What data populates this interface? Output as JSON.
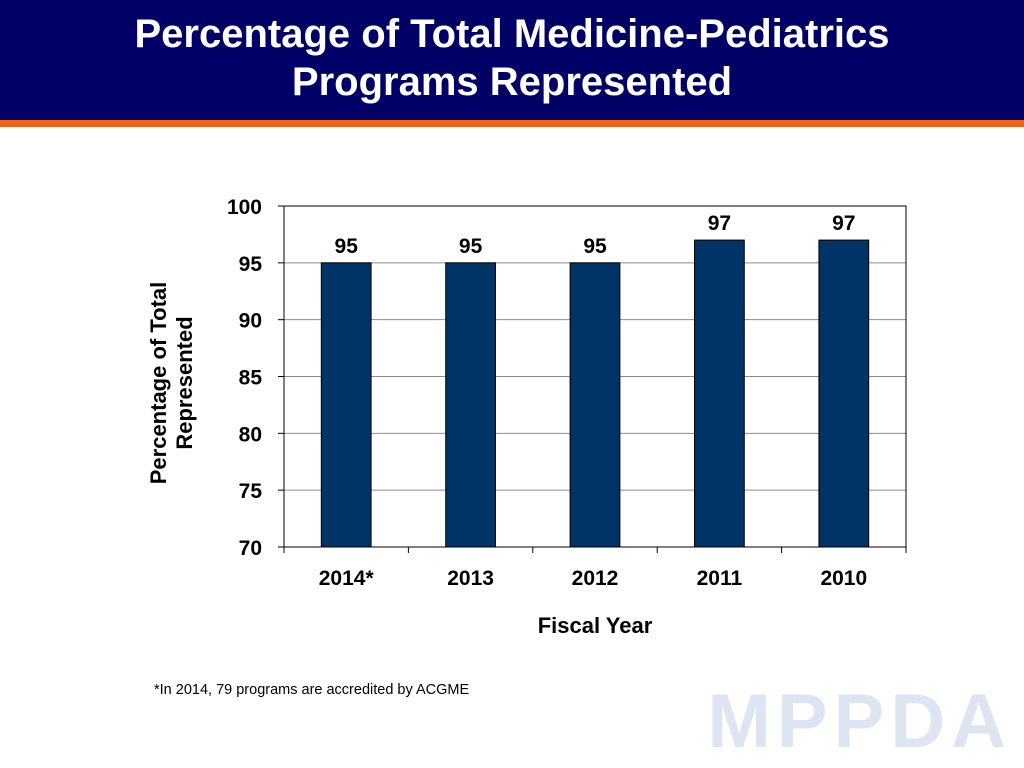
{
  "slide": {
    "title_line1": "Percentage of Total Medicine-Pediatrics",
    "title_line2": "Programs Represented",
    "footnote": "*In 2014, 79 programs are accredited by ACGME",
    "watermark": "MPPDA"
  },
  "colors": {
    "header": "#000066",
    "stripe": "#f2621f",
    "bar": "#003366"
  },
  "chart_data": {
    "type": "bar",
    "categories": [
      "2014*",
      "2013",
      "2012",
      "2011",
      "2010"
    ],
    "values": [
      95,
      95,
      95,
      97,
      97
    ],
    "data_labels": [
      "95",
      "95",
      "95",
      "97",
      "97"
    ],
    "xlabel": "Fiscal Year",
    "ylabel_line1": "Percentage of Total",
    "ylabel_line2": "Represented",
    "ylim": [
      70,
      100
    ],
    "yticks": [
      70,
      75,
      80,
      85,
      90,
      95,
      100
    ],
    "grid": true,
    "legend": "none"
  }
}
